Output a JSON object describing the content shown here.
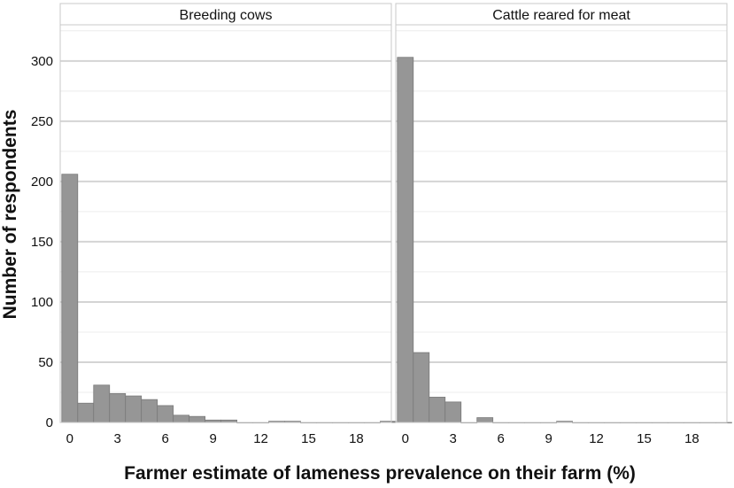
{
  "chart_data": {
    "type": "bar",
    "xlabel": "Farmer estimate of lameness prevalence on their farm (%)",
    "ylabel": "Number of respondents",
    "xlim": [
      -0.6,
      20.2
    ],
    "ylim": [
      0,
      330
    ],
    "bin_width": 1,
    "x_ticks": [
      0,
      3,
      6,
      9,
      12,
      15,
      18
    ],
    "y_ticks": [
      0,
      50,
      100,
      150,
      200,
      250,
      300
    ],
    "grid": true,
    "colors": {
      "bar": "#969696",
      "bar_edge": "#7a7a7a",
      "grid": "#d4d4d4",
      "strip_bg": "#ffffff",
      "panel_border": "#c8c8c8"
    },
    "panels": [
      {
        "strip": "Breeding cows",
        "bins": [
          {
            "x": 0,
            "count": 206
          },
          {
            "x": 1,
            "count": 16
          },
          {
            "x": 2,
            "count": 31
          },
          {
            "x": 3,
            "count": 24
          },
          {
            "x": 4,
            "count": 22
          },
          {
            "x": 5,
            "count": 19
          },
          {
            "x": 6,
            "count": 14
          },
          {
            "x": 7,
            "count": 6
          },
          {
            "x": 8,
            "count": 5
          },
          {
            "x": 9,
            "count": 2
          },
          {
            "x": 10,
            "count": 2
          },
          {
            "x": 11,
            "count": 0
          },
          {
            "x": 12,
            "count": 0
          },
          {
            "x": 13,
            "count": 1
          },
          {
            "x": 14,
            "count": 1
          },
          {
            "x": 15,
            "count": 0
          },
          {
            "x": 16,
            "count": 0
          },
          {
            "x": 17,
            "count": 0
          },
          {
            "x": 18,
            "count": 0
          },
          {
            "x": 19,
            "count": 0
          },
          {
            "x": 20,
            "count": 1
          }
        ]
      },
      {
        "strip": "Cattle reared for meat",
        "bins": [
          {
            "x": 0,
            "count": 303
          },
          {
            "x": 1,
            "count": 58
          },
          {
            "x": 2,
            "count": 21
          },
          {
            "x": 3,
            "count": 17
          },
          {
            "x": 4,
            "count": 0
          },
          {
            "x": 5,
            "count": 4
          },
          {
            "x": 6,
            "count": 0
          },
          {
            "x": 7,
            "count": 0
          },
          {
            "x": 8,
            "count": 0
          },
          {
            "x": 9,
            "count": 0
          },
          {
            "x": 10,
            "count": 1
          },
          {
            "x": 11,
            "count": 0
          },
          {
            "x": 12,
            "count": 0
          },
          {
            "x": 13,
            "count": 0
          },
          {
            "x": 14,
            "count": 0
          },
          {
            "x": 15,
            "count": 0
          },
          {
            "x": 16,
            "count": 0
          },
          {
            "x": 17,
            "count": 0
          },
          {
            "x": 18,
            "count": 0
          },
          {
            "x": 19,
            "count": 0
          },
          {
            "x": 20,
            "count": 0
          }
        ]
      }
    ]
  }
}
